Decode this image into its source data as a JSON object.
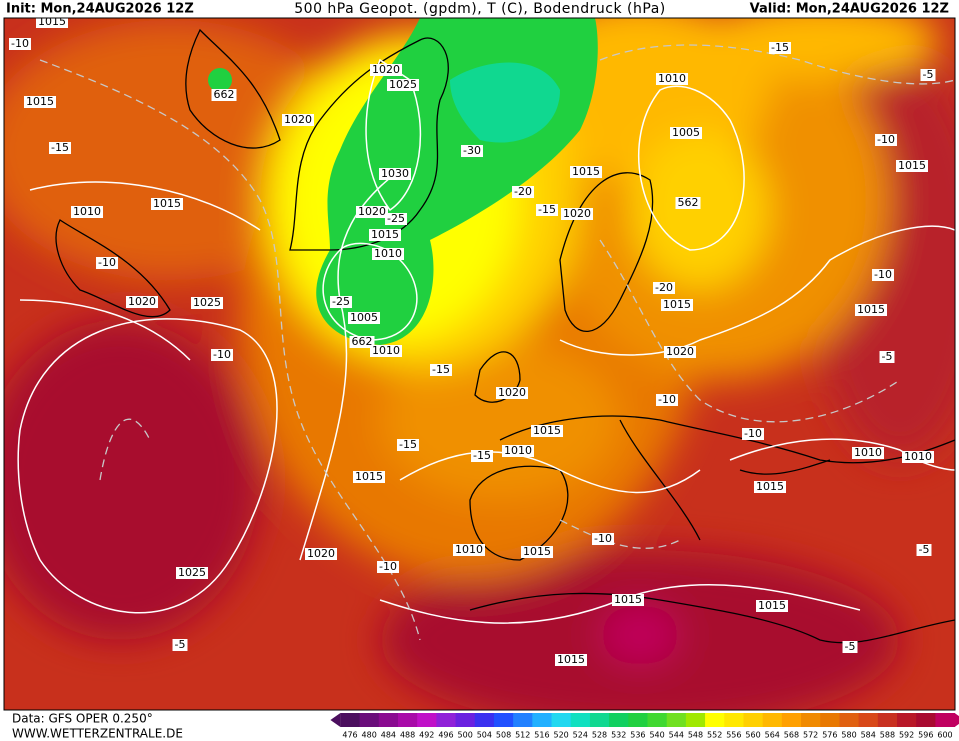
{
  "header": {
    "init": "Init: Mon,24AUG2026 12Z",
    "title": "500 hPa Geopot. (gpdm), T (C), Bodendruck (hPa)",
    "valid": "Valid: Mon,24AUG2026 12Z"
  },
  "map": {
    "labels": [
      "1015",
      "-10",
      "662",
      "1015",
      "1020",
      "1020",
      "1025",
      "-15",
      "-30",
      "1030",
      "1010",
      "1015",
      "1020",
      "-25",
      "1015",
      "1010",
      "-10",
      "1020",
      "1025",
      "-25",
      "1005",
      "662",
      "1010",
      "-10",
      "-15",
      "1020",
      "1015",
      "-15",
      "-15",
      "1010",
      "1015",
      "1020",
      "-10",
      "1010",
      "1015",
      "-10",
      "1025",
      "1015",
      "1015",
      "-5",
      "1015",
      "-5",
      "-15",
      "-5",
      "1010",
      "1005",
      "-10",
      "1015",
      "1015",
      "562",
      "-20",
      "-15",
      "1020",
      "-20",
      "1015",
      "1020",
      "-10",
      "1015",
      "-5",
      "-10",
      "-10",
      "1010",
      "1010",
      "1015",
      "-5"
    ]
  },
  "footer": {
    "data": "Data: GFS OPER 0.250°",
    "site": "WWW.WETTERZENTRALE.DE"
  },
  "colorbar": {
    "ticks": [
      476,
      480,
      484,
      488,
      492,
      496,
      500,
      504,
      508,
      512,
      516,
      520,
      524,
      528,
      532,
      536,
      540,
      544,
      548,
      552,
      556,
      560,
      564,
      568,
      572,
      576,
      580,
      584,
      588,
      592,
      596,
      600
    ],
    "colors": [
      "#4b0f5e",
      "#6a0d7a",
      "#8a0a90",
      "#a80aa8",
      "#c010c8",
      "#9020d8",
      "#6a20e0",
      "#3a30f0",
      "#2050ff",
      "#2080ff",
      "#20b0ff",
      "#20d8f0",
      "#10e0c0",
      "#10d890",
      "#10d060",
      "#20d040",
      "#40d830",
      "#70e020",
      "#a0e800",
      "#ffff00",
      "#ffe800",
      "#ffd000",
      "#ffb800",
      "#ffa000",
      "#f08a00",
      "#e87800",
      "#e06010",
      "#d84818",
      "#c83020",
      "#b81828",
      "#a80a30",
      "#c00060"
    ]
  }
}
